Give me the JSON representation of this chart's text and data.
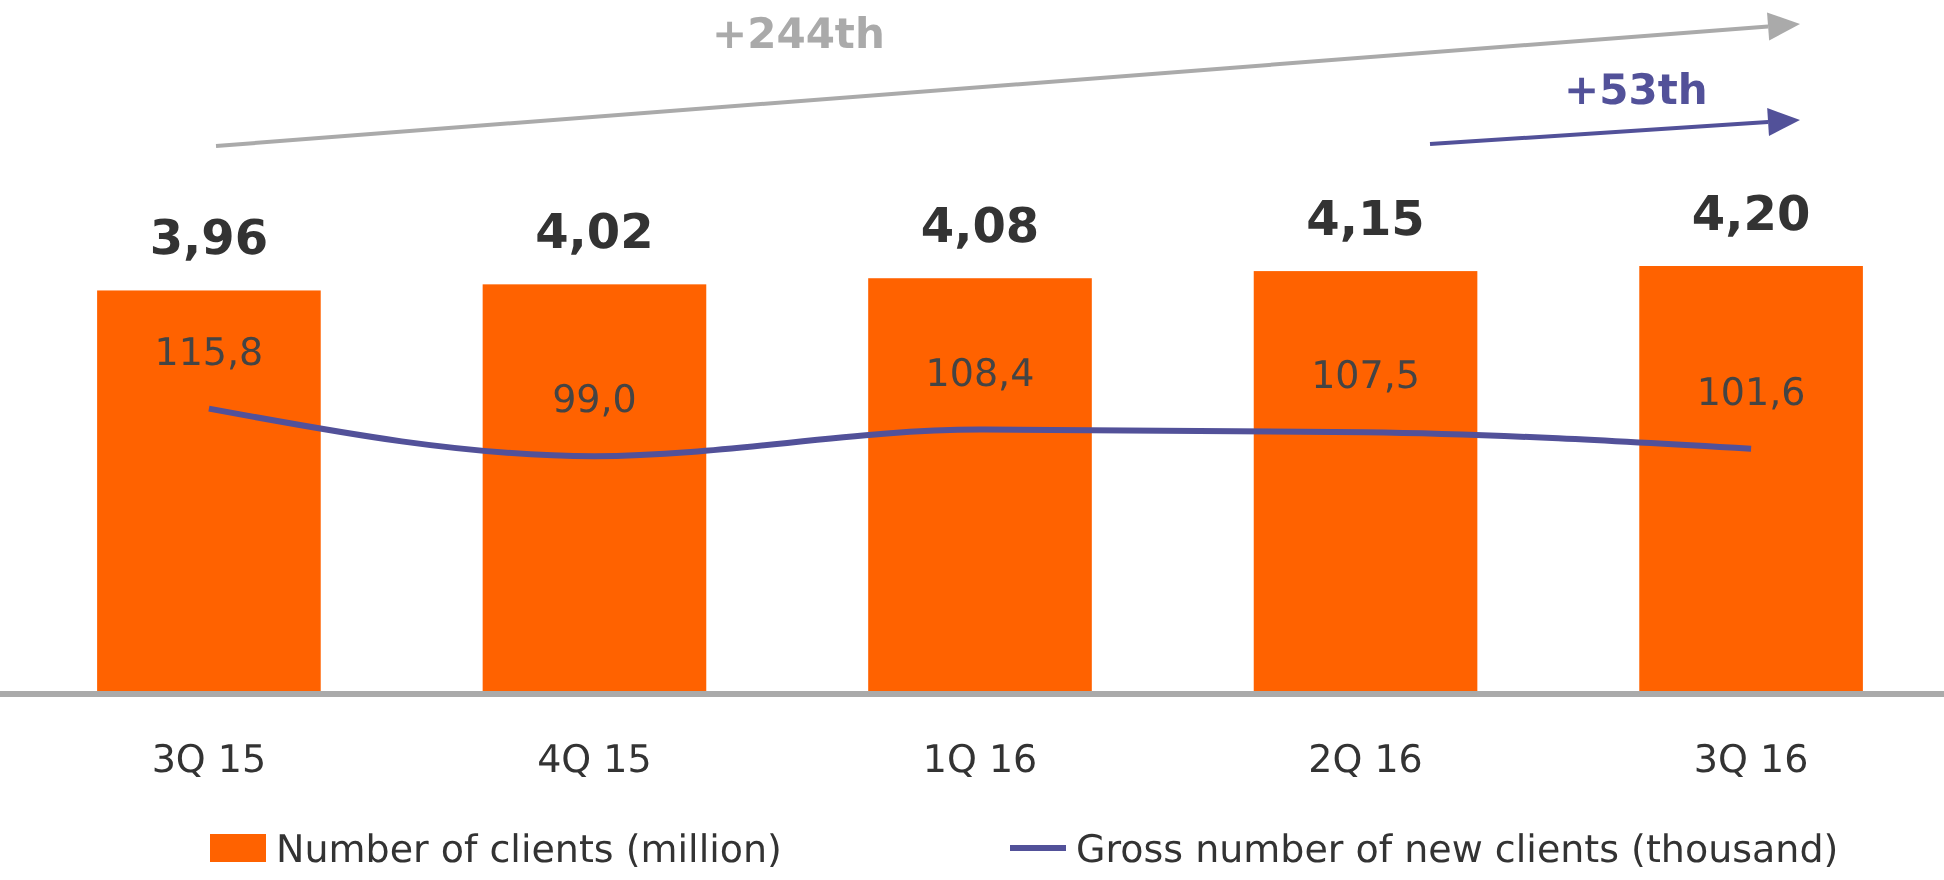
{
  "chart_data": {
    "type": "bar",
    "categories": [
      "3Q 15",
      "4Q 15",
      "1Q 16",
      "2Q 16",
      "3Q 16"
    ],
    "series": [
      {
        "name": "Number of clients (million)",
        "color": "#ff6200",
        "values": [
          3.96,
          4.02,
          4.08,
          4.15,
          4.2
        ],
        "value_labels": [
          "3,96",
          "4,02",
          "4,08",
          "4,15",
          "4,20"
        ]
      },
      {
        "name": "Gross number of new clients (thousand)",
        "type": "line",
        "axis": "y2",
        "color": "#525199",
        "values": [
          115.8,
          99.0,
          108.4,
          107.5,
          101.6
        ],
        "value_labels": [
          "115,8",
          "99,0",
          "108,4",
          "107,5",
          "101,6"
        ]
      }
    ],
    "annotations": [
      "+244th",
      "+53th"
    ],
    "legend": "bottom",
    "grid": false,
    "marker": "none"
  }
}
